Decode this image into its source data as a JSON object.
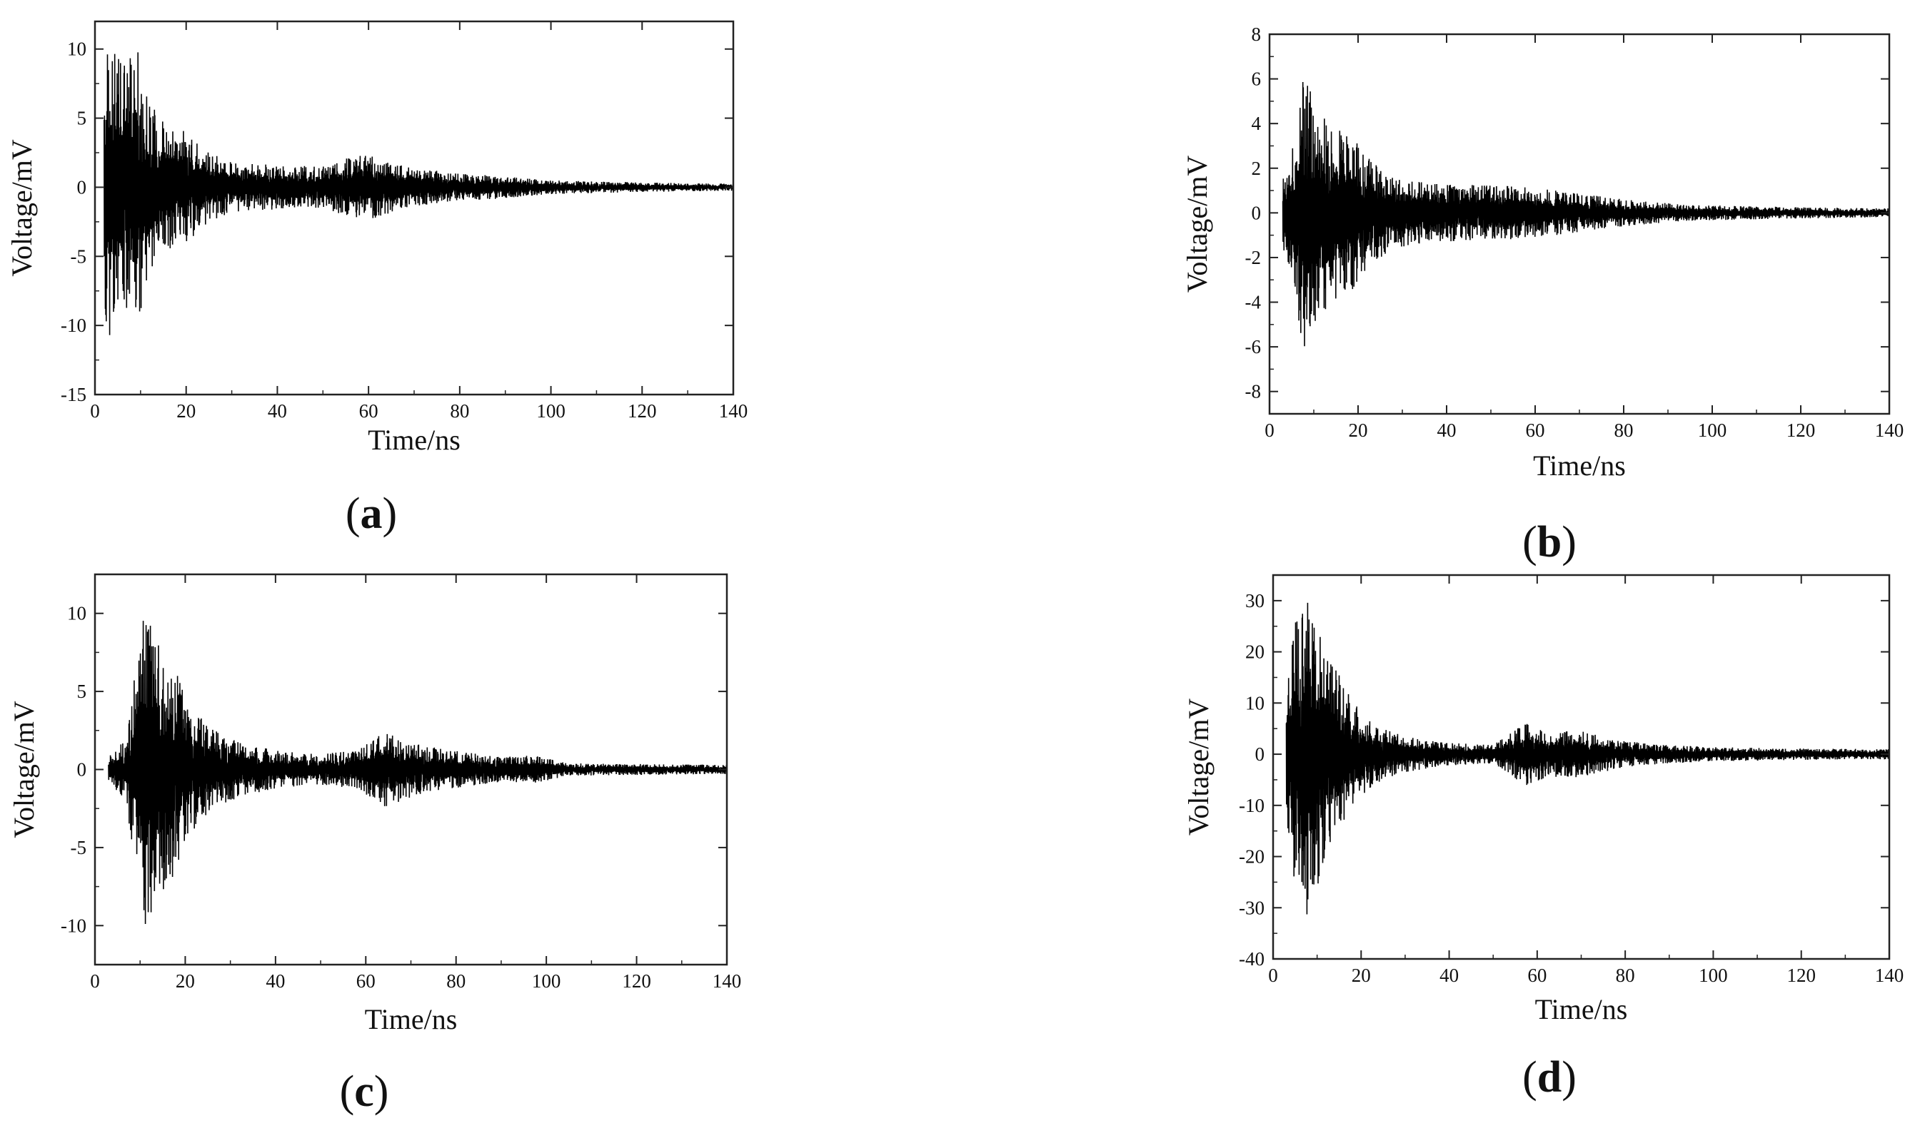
{
  "chart_data": [
    {
      "type": "line",
      "caption": {
        "prefix": "(",
        "letter": "a",
        "suffix": ")"
      },
      "xlabel": "Time/ns",
      "ylabel": "Voltage/mV",
      "xlim": [
        0,
        140
      ],
      "ylim": [
        -15,
        12
      ],
      "xticks": [
        0,
        20,
        40,
        60,
        80,
        100,
        120,
        140
      ],
      "yticks": [
        -15,
        -10,
        -5,
        0,
        5,
        10
      ],
      "grid": false,
      "legend": "none",
      "color": "#000000",
      "signal_envelope": {
        "start": 2,
        "points": [
          [
            2,
            10.5
          ],
          [
            4,
            11.0
          ],
          [
            6,
            8.5
          ],
          [
            9,
            10.5
          ],
          [
            12,
            6.0
          ],
          [
            16,
            4.5
          ],
          [
            20,
            4.0
          ],
          [
            25,
            2.5
          ],
          [
            30,
            1.8
          ],
          [
            40,
            1.6
          ],
          [
            50,
            1.5
          ],
          [
            58,
            2.4
          ],
          [
            62,
            2.2
          ],
          [
            70,
            1.4
          ],
          [
            80,
            1.0
          ],
          [
            90,
            0.8
          ],
          [
            100,
            0.5
          ],
          [
            120,
            0.35
          ],
          [
            140,
            0.25
          ]
        ]
      }
    },
    {
      "type": "line",
      "caption": {
        "prefix": "(",
        "letter": "b",
        "suffix": ")"
      },
      "xlabel": "Time/ns",
      "ylabel": "Voltage/mV",
      "xlim": [
        0,
        140
      ],
      "ylim": [
        -9,
        8
      ],
      "xticks": [
        0,
        20,
        40,
        60,
        80,
        100,
        120,
        140
      ],
      "yticks": [
        -8,
        -6,
        -4,
        -2,
        0,
        2,
        4,
        6,
        8
      ],
      "grid": false,
      "legend": "none",
      "color": "#000000",
      "signal_envelope": {
        "start": 3,
        "points": [
          [
            3,
            1.5
          ],
          [
            5,
            3.0
          ],
          [
            8,
            6.5
          ],
          [
            10,
            5.0
          ],
          [
            14,
            4.0
          ],
          [
            18,
            3.7
          ],
          [
            22,
            2.5
          ],
          [
            28,
            1.6
          ],
          [
            40,
            1.3
          ],
          [
            55,
            1.2
          ],
          [
            65,
            1.0
          ],
          [
            80,
            0.6
          ],
          [
            95,
            0.35
          ],
          [
            120,
            0.25
          ],
          [
            140,
            0.2
          ]
        ]
      }
    },
    {
      "type": "line",
      "caption": {
        "prefix": "(",
        "letter": "c",
        "suffix": ")"
      },
      "xlabel": "Time/ns",
      "ylabel": "Voltage/mV",
      "xlim": [
        0,
        140
      ],
      "ylim": [
        -12.5,
        12.5
      ],
      "xticks": [
        0,
        20,
        40,
        60,
        80,
        100,
        120,
        140
      ],
      "yticks": [
        -10,
        -5,
        0,
        5,
        10
      ],
      "grid": false,
      "legend": "none",
      "color": "#000000",
      "signal_envelope": {
        "start": 3,
        "points": [
          [
            3,
            0.8
          ],
          [
            7,
            2.0
          ],
          [
            9,
            7.0
          ],
          [
            11,
            10.3
          ],
          [
            14,
            8.0
          ],
          [
            17,
            7.5
          ],
          [
            20,
            4.5
          ],
          [
            25,
            2.8
          ],
          [
            30,
            2.0
          ],
          [
            40,
            1.2
          ],
          [
            50,
            1.0
          ],
          [
            58,
            1.2
          ],
          [
            64,
            2.4
          ],
          [
            72,
            1.6
          ],
          [
            80,
            1.2
          ],
          [
            90,
            0.8
          ],
          [
            97,
            0.9
          ],
          [
            105,
            0.4
          ],
          [
            120,
            0.35
          ],
          [
            140,
            0.3
          ]
        ]
      }
    },
    {
      "type": "line",
      "caption": {
        "prefix": "(",
        "letter": "d",
        "suffix": ")"
      },
      "xlabel": "Time/ns",
      "ylabel": "Voltage/mV",
      "xlim": [
        0,
        140
      ],
      "ylim": [
        -40,
        35
      ],
      "xticks": [
        0,
        20,
        40,
        60,
        80,
        100,
        120,
        140
      ],
      "yticks": [
        -40,
        -30,
        -20,
        -10,
        0,
        10,
        20,
        30
      ],
      "grid": false,
      "legend": "none",
      "color": "#000000",
      "signal_envelope": {
        "start": 3,
        "points": [
          [
            3,
            12.0
          ],
          [
            5,
            26.0
          ],
          [
            8,
            32.0
          ],
          [
            12,
            20.0
          ],
          [
            16,
            14.0
          ],
          [
            20,
            8.0
          ],
          [
            25,
            5.0
          ],
          [
            30,
            3.5
          ],
          [
            40,
            2.2
          ],
          [
            50,
            1.8
          ],
          [
            58,
            6.5
          ],
          [
            62,
            4.5
          ],
          [
            70,
            4.5
          ],
          [
            80,
            2.5
          ],
          [
            90,
            1.8
          ],
          [
            100,
            1.4
          ],
          [
            120,
            1.1
          ],
          [
            140,
            1.0
          ]
        ]
      }
    }
  ]
}
